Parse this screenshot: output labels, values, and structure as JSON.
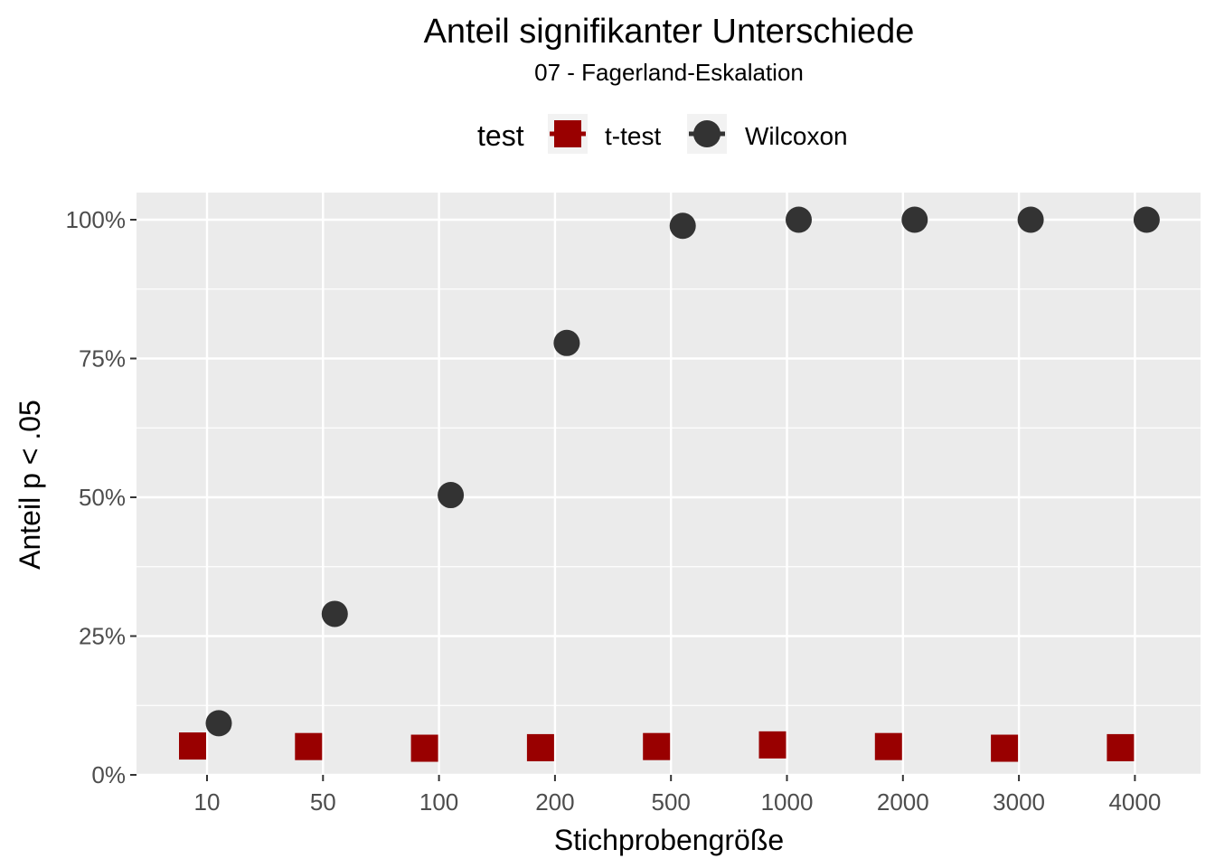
{
  "chart_data": {
    "type": "scatter",
    "title": "Anteil signifikanter Unterschiede",
    "subtitle": "07 - Fagerland-Eskalation",
    "xlabel": "Stichprobengröße",
    "ylabel": "Anteil p < .05",
    "categories": [
      "10",
      "50",
      "100",
      "200",
      "500",
      "1000",
      "2000",
      "3000",
      "4000"
    ],
    "y_ticks": [
      {
        "value": 0,
        "label": "0%"
      },
      {
        "value": 0.25,
        "label": "25%"
      },
      {
        "value": 0.5,
        "label": "50%"
      },
      {
        "value": 0.75,
        "label": "75%"
      },
      {
        "value": 1,
        "label": "100%"
      }
    ],
    "ylim": [
      0,
      1
    ],
    "grid": true,
    "legend": {
      "title": "test",
      "position": "top"
    },
    "series": [
      {
        "name": "t-test",
        "color": "#990000",
        "shape": "square",
        "dodge": "left",
        "values": [
          0.052,
          0.051,
          0.048,
          0.049,
          0.051,
          0.054,
          0.051,
          0.048,
          0.049
        ]
      },
      {
        "name": "Wilcoxon",
        "color": "#333333",
        "shape": "circle",
        "dodge": "right",
        "values": [
          0.093,
          0.29,
          0.504,
          0.778,
          0.989,
          1.0,
          1.0,
          1.0,
          1.0
        ]
      }
    ]
  }
}
